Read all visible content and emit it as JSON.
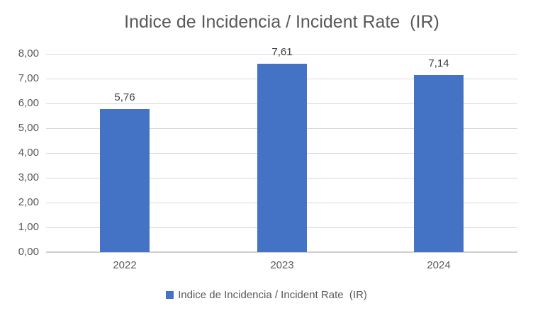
{
  "chart_data": {
    "type": "bar",
    "title": "Indice de Incidencia / Incident Rate  (IR)",
    "categories": [
      "2022",
      "2023",
      "2024"
    ],
    "values": [
      5.76,
      7.61,
      7.14
    ],
    "value_labels": [
      "5,76",
      "7,61",
      "7,14"
    ],
    "xlabel": "",
    "ylabel": "",
    "ylim": [
      0,
      8
    ],
    "ytick_step": 1,
    "ytick_labels": [
      "0,00",
      "1,00",
      "2,00",
      "3,00",
      "4,00",
      "5,00",
      "6,00",
      "7,00",
      "8,00"
    ],
    "grid": true,
    "legend": {
      "position": "bottom",
      "entries": [
        "Indice de Incidencia / Incident Rate  (IR)"
      ]
    },
    "colors": {
      "bar": "#4472C4",
      "gridline": "#D9D9D9",
      "axis_line": "#CFCFCF",
      "title_text": "#595959",
      "tick_text": "#595959",
      "data_label_text": "#404040"
    }
  }
}
